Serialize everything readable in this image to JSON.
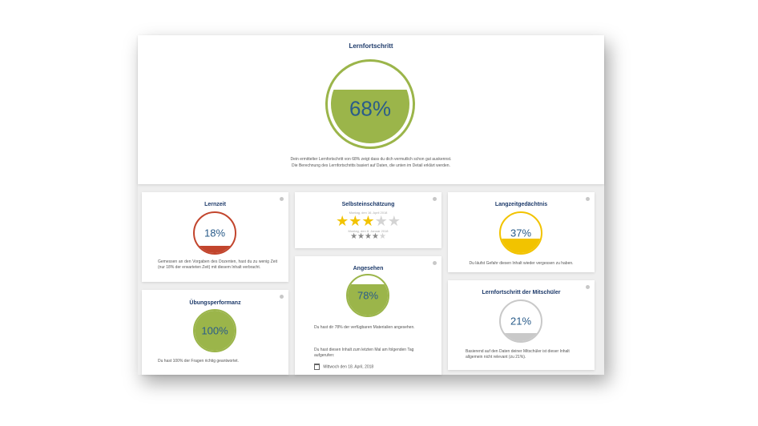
{
  "main": {
    "title": "Lernfortschritt",
    "percent_label": "68%",
    "percent": 68,
    "desc_line1": "Dein ermittelter Lernfortschritt von 68% zeigt dass du dich vermutlich schon gut auskennst.",
    "desc_line2": "Die Berechnung des Lernfortschritts basiert auf Daten, die unten im Detail erklärt werden."
  },
  "lernzeit": {
    "title": "Lernzeit",
    "percent_label": "18%",
    "percent": 18,
    "desc": "Gemessen an den Vorgaben des Dozenten, hast du zu wenig Zeit (nur 18% der erwarteten Zeit) mit diesem Inhalt verbracht."
  },
  "selbst": {
    "title": "Selbsteinschätzung",
    "date1": "Montag, den 16. April 2018",
    "rating1": 3,
    "date2": "Montag, den 8. Januar 2018",
    "rating2": 4,
    "max": 5
  },
  "langzeit": {
    "title": "Langzeitgedächtnis",
    "percent_label": "37%",
    "percent": 37,
    "desc": "Du läufst Gefahr diesen Inhalt wieder vergessen zu haben."
  },
  "angesehen": {
    "title": "Angesehen",
    "percent_label": "78%",
    "percent": 78,
    "desc": "Du hast dir 78% der verfügbaren Materialien angesehen.",
    "desc2": "Du hast diesen Inhalt zum letzten Mal am folgenden Tag aufgerufen:",
    "date": "Mittwoch den 18. April, 2018"
  },
  "uebung": {
    "title": "Übungsperformanz",
    "percent_label": "100%",
    "percent": 100,
    "desc": "Du hast 100% der Fragen richtig geantwortet."
  },
  "mitschueler": {
    "title": "Lernfortschritt der Mitschüler",
    "percent_label": "21%",
    "percent": 21,
    "desc": "Basierend auf den Daten deiner Mitschüler ist dieser Inhalt allgemein nicht relevant (zu 21%)."
  },
  "colors": {
    "green": "#9bb54a",
    "red": "#c2452d",
    "yellow": "#f2c300",
    "grey": "#c9c9c9",
    "title": "#1d3a6a"
  },
  "icons": {
    "info": "info-icon",
    "calendar": "calendar-icon",
    "star": "star-icon"
  }
}
